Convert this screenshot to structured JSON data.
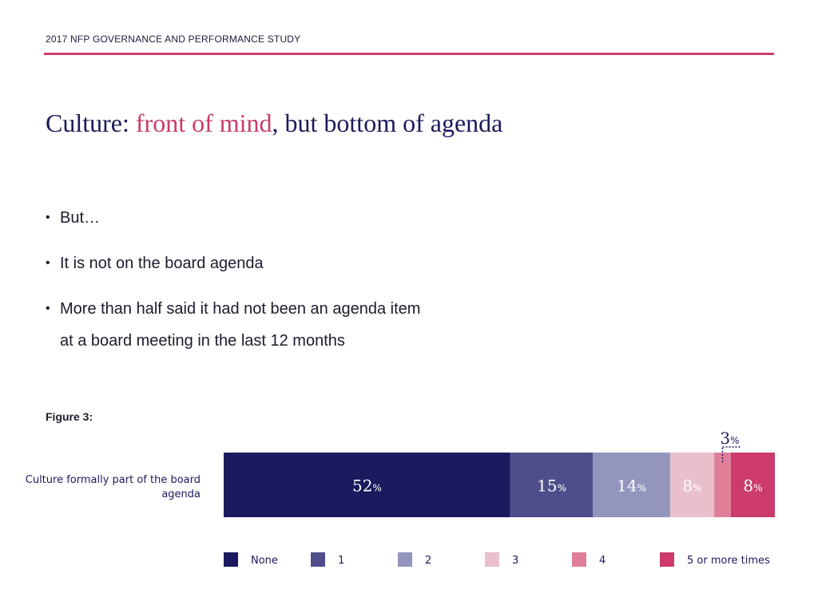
{
  "header": {
    "text": "2017 NFP GOVERNANCE AND PERFORMANCE STUDY"
  },
  "title": {
    "prefix": "Culture: ",
    "accent": "front of mind",
    "suffix": ", but bottom of agenda"
  },
  "bullets": [
    {
      "text": "But…"
    },
    {
      "text": "It is not on the board agenda"
    },
    {
      "line1": "More than half said it had not been an agenda item",
      "line2": "at a board meeting in the last 12 months"
    }
  ],
  "figure": {
    "label": "Figure 3:"
  },
  "chart_data": {
    "type": "bar",
    "orientation": "horizontal-stacked-100",
    "title": "",
    "categories": [
      "Culture formally part of the board agenda"
    ],
    "category_label_lines": [
      "Culture formally part of the board",
      "agenda"
    ],
    "unit": "%",
    "series": [
      {
        "name": "None",
        "values": [
          52
        ],
        "color": "#1b1a5e"
      },
      {
        "name": "1",
        "values": [
          15
        ],
        "color": "#4f4e8b"
      },
      {
        "name": "2",
        "values": [
          14
        ],
        "color": "#9495bd"
      },
      {
        "name": "3",
        "values": [
          8
        ],
        "color": "#e9bfcc"
      },
      {
        "name": "4",
        "values": [
          3
        ],
        "color": "#df7f98"
      },
      {
        "name": "5 or more times",
        "values": [
          8
        ],
        "color": "#cc3b6c"
      }
    ],
    "legend_position": "bottom",
    "xlim": [
      0,
      100
    ]
  }
}
